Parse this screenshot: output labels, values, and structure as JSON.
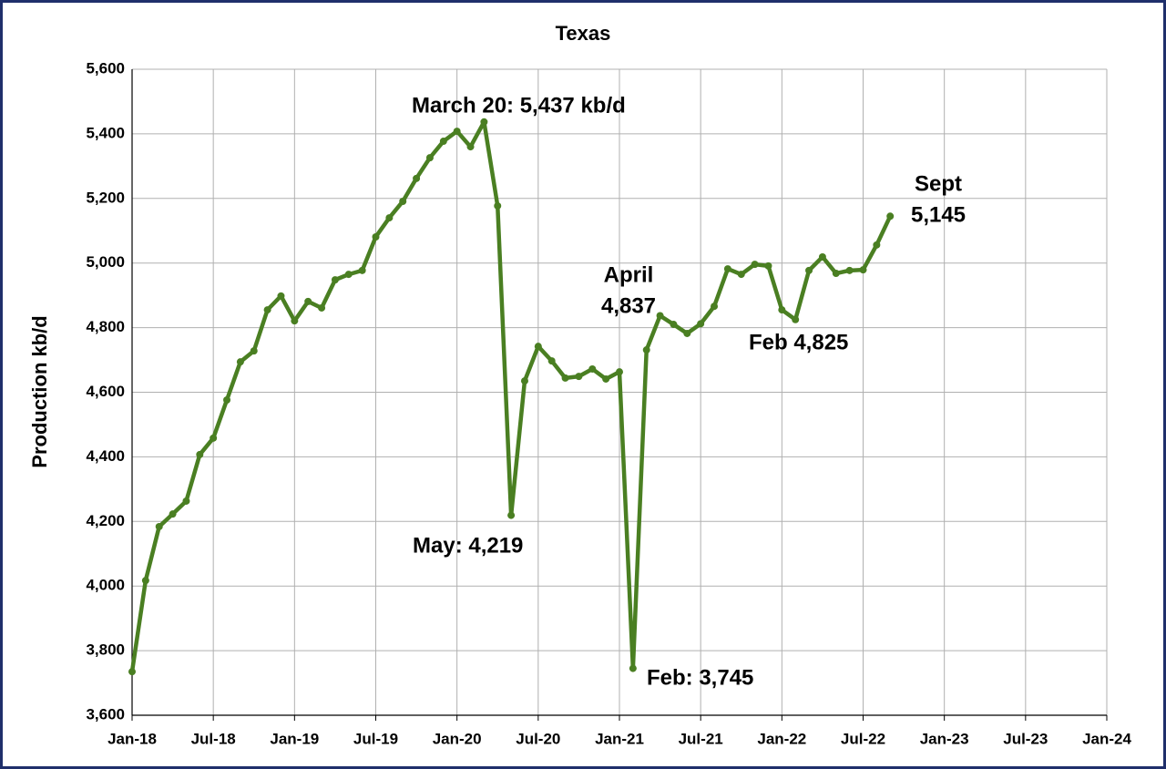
{
  "chart_data": {
    "type": "line",
    "title": "Texas",
    "ylabel": "Production kb/d",
    "color": "#4a7f22",
    "grid": true,
    "x": [
      "2018-01",
      "2018-02",
      "2018-03",
      "2018-04",
      "2018-05",
      "2018-06",
      "2018-07",
      "2018-08",
      "2018-09",
      "2018-10",
      "2018-11",
      "2018-12",
      "2019-01",
      "2019-02",
      "2019-03",
      "2019-04",
      "2019-05",
      "2019-06",
      "2019-07",
      "2019-08",
      "2019-09",
      "2019-10",
      "2019-11",
      "2019-12",
      "2020-01",
      "2020-02",
      "2020-03",
      "2020-04",
      "2020-05",
      "2020-06",
      "2020-07",
      "2020-08",
      "2020-09",
      "2020-10",
      "2020-11",
      "2020-12",
      "2021-01",
      "2021-02",
      "2021-03",
      "2021-04",
      "2021-05",
      "2021-06",
      "2021-07",
      "2021-08",
      "2021-09",
      "2021-10",
      "2021-11",
      "2021-12",
      "2022-01",
      "2022-02",
      "2022-03",
      "2022-04",
      "2022-05",
      "2022-06",
      "2022-07",
      "2022-08",
      "2022-09"
    ],
    "values": [
      3735,
      4017,
      4184,
      4223,
      4263,
      4407,
      4458,
      4576,
      4694,
      4728,
      4855,
      4898,
      4821,
      4881,
      4861,
      4948,
      4965,
      4977,
      5081,
      5140,
      5191,
      5262,
      5326,
      5377,
      5408,
      5360,
      5437,
      5177,
      4219,
      4635,
      4742,
      4697,
      4644,
      4649,
      4672,
      4641,
      4663,
      3745,
      4731,
      4837,
      4810,
      4782,
      4812,
      4866,
      4982,
      4965,
      4996,
      4991,
      4855,
      4825,
      4977,
      5019,
      4968,
      4977,
      4979,
      5056,
      5145
    ],
    "xlim": [
      "2018-01",
      "2024-01"
    ],
    "xticks": [
      {
        "value": "2018-01",
        "label": "Jan-18"
      },
      {
        "value": "2018-07",
        "label": "Jul-18"
      },
      {
        "value": "2019-01",
        "label": "Jan-19"
      },
      {
        "value": "2019-07",
        "label": "Jul-19"
      },
      {
        "value": "2020-01",
        "label": "Jan-20"
      },
      {
        "value": "2020-07",
        "label": "Jul-20"
      },
      {
        "value": "2021-01",
        "label": "Jan-21"
      },
      {
        "value": "2021-07",
        "label": "Jul-21"
      },
      {
        "value": "2022-01",
        "label": "Jan-22"
      },
      {
        "value": "2022-07",
        "label": "Jul-22"
      },
      {
        "value": "2023-01",
        "label": "Jan-23"
      },
      {
        "value": "2023-07",
        "label": "Jul-23"
      },
      {
        "value": "2024-01",
        "label": "Jan-24"
      }
    ],
    "ylim": [
      3600,
      5600
    ],
    "yticks": [
      {
        "value": 3600,
        "label": "3,600"
      },
      {
        "value": 3800,
        "label": "3,800"
      },
      {
        "value": 4000,
        "label": "4,000"
      },
      {
        "value": 4200,
        "label": "4,200"
      },
      {
        "value": 4400,
        "label": "4,400"
      },
      {
        "value": 4600,
        "label": "4,600"
      },
      {
        "value": 4800,
        "label": "4,800"
      },
      {
        "value": 5000,
        "label": "5,000"
      },
      {
        "value": 5200,
        "label": "5,200"
      },
      {
        "value": 5400,
        "label": "5,400"
      },
      {
        "value": 5600,
        "label": "5,600"
      }
    ],
    "annotations": [
      {
        "lines": [
          "March 20: 5,437 kb/d"
        ]
      },
      {
        "lines": [
          "May: 4,219"
        ]
      },
      {
        "lines": [
          "Feb: 3,745"
        ]
      },
      {
        "lines": [
          "April",
          "4,837"
        ]
      },
      {
        "lines": [
          "Feb 4,825"
        ]
      },
      {
        "lines": [
          "Sept",
          "5,145"
        ]
      }
    ]
  }
}
